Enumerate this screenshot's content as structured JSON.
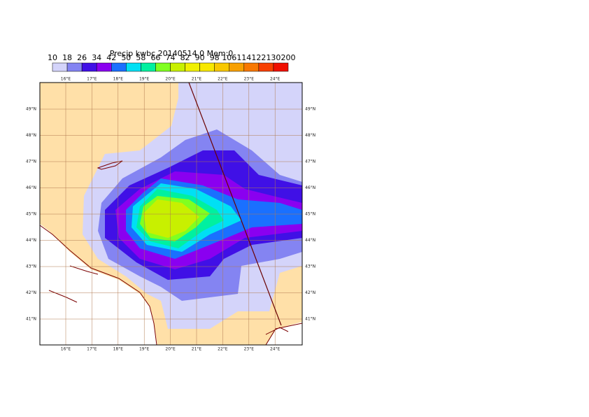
{
  "title": "Precip kwbc 20140514 0 Mem:0",
  "colorbar": {
    "labels": [
      "10",
      "18",
      "26",
      "34",
      "42",
      "50",
      "58",
      "66",
      "74",
      "82",
      "90",
      "98",
      "106",
      "114",
      "122",
      "130",
      "200"
    ],
    "colors": [
      "#d4d4fa",
      "#8484f2",
      "#4010e6",
      "#8a00f0",
      "#1a70ff",
      "#00e0f4",
      "#00f0a0",
      "#80ff20",
      "#c8f000",
      "#f0f000",
      "#f8e800",
      "#f8c800",
      "#f8a000",
      "#f87800",
      "#f84000",
      "#f01000"
    ]
  },
  "lon_labels": [
    "16°E",
    "17°E",
    "18°E",
    "19°E",
    "20°E",
    "21°E",
    "22°E",
    "23°E",
    "24°E"
  ],
  "lat_labels": [
    "49°N",
    "48°N",
    "47°N",
    "46°N",
    "45°N",
    "44°N",
    "43°N",
    "42°N",
    "41°N"
  ]
}
